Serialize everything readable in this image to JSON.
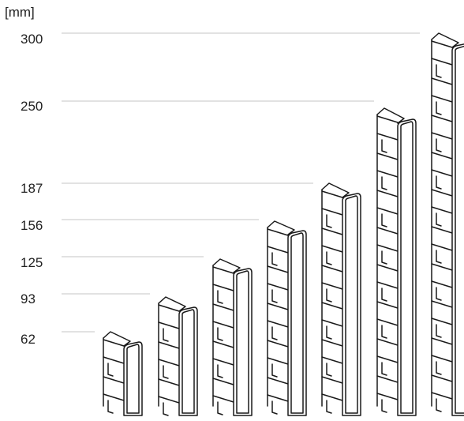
{
  "unit_label": "[mm]",
  "levels": [
    {
      "label": "300",
      "value": 300
    },
    {
      "label": "250",
      "value": 250
    },
    {
      "label": "187",
      "value": 187
    },
    {
      "label": "156",
      "value": 156
    },
    {
      "label": "125",
      "value": 125
    },
    {
      "label": "93",
      "value": 93
    },
    {
      "label": "62",
      "value": 62
    }
  ],
  "colors": {
    "gridline": "#c4c4c4",
    "outline": "#1a1a1a",
    "fill": "#ffffff"
  },
  "divider_heights_mm": [
    62,
    93,
    125,
    156,
    187,
    250,
    300
  ]
}
